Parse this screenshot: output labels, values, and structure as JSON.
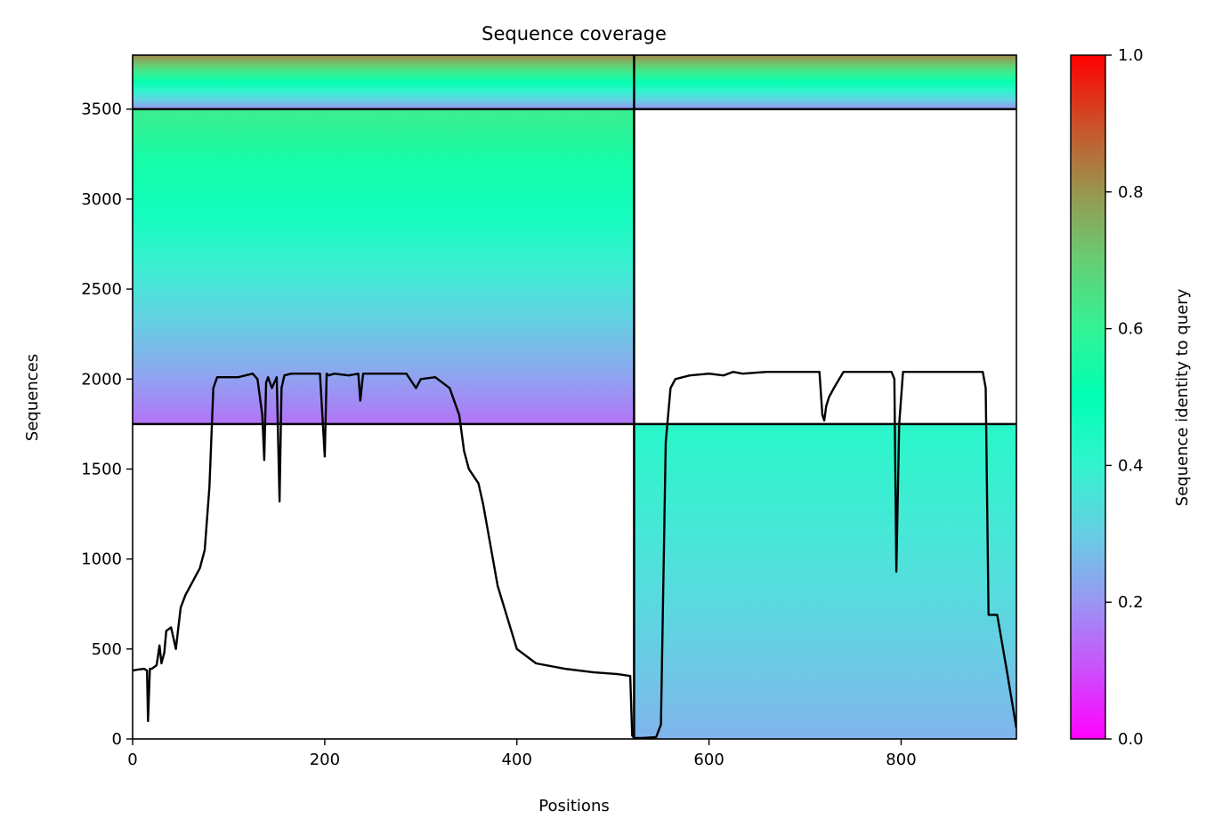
{
  "chart_data": {
    "type": "heatmap",
    "title": "Sequence coverage",
    "xlabel": "Positions",
    "ylabel": "Sequences",
    "xlim": [
      0,
      920
    ],
    "ylim": [
      0,
      3800
    ],
    "x_ticks": [
      0,
      200,
      400,
      600,
      800
    ],
    "y_ticks": [
      0,
      500,
      1000,
      1500,
      2000,
      2500,
      3000,
      3500
    ],
    "grid": false,
    "colorbar": {
      "label": "Sequence identity to query",
      "range": [
        0.0,
        1.0
      ],
      "ticks": [
        "0.0",
        "0.2",
        "0.4",
        "0.6",
        "0.8",
        "1.0"
      ],
      "colormap": "rainbow"
    },
    "boundaries": {
      "chain_break_x": 522,
      "row_breaks_y": [
        1750,
        3500
      ]
    },
    "blocks": [
      {
        "name": "block-a-top",
        "x0": 0,
        "x1": 522,
        "y0": 3500,
        "y1": 3800,
        "id_bottom": 0.2,
        "id_top": 0.82
      },
      {
        "name": "block-b-top",
        "x0": 522,
        "x1": 920,
        "y0": 3500,
        "y1": 3800,
        "id_bottom": 0.2,
        "id_top": 0.82
      },
      {
        "name": "block-a-mid",
        "x0": 0,
        "x1": 522,
        "y0": 1750,
        "y1": 3500,
        "id_bottom": 0.15,
        "id_top": 0.62
      },
      {
        "name": "block-b-low",
        "x0": 522,
        "x1": 920,
        "y0": 0,
        "y1": 1750,
        "id_bottom": 0.25,
        "id_top": 0.42
      }
    ],
    "coverage_profile": {
      "x": [
        0,
        5,
        12,
        15,
        16,
        18,
        20,
        25,
        28,
        30,
        33,
        35,
        40,
        45,
        50,
        55,
        60,
        65,
        70,
        75,
        80,
        84,
        88,
        95,
        110,
        125,
        130,
        135,
        137,
        139,
        141,
        145,
        150,
        153,
        155,
        158,
        165,
        180,
        195,
        200,
        202,
        204,
        210,
        225,
        235,
        237,
        240,
        260,
        285,
        295,
        300,
        315,
        330,
        340,
        345,
        350,
        360,
        365,
        380,
        400,
        420,
        450,
        480,
        505,
        518,
        520,
        522,
        530,
        545,
        550,
        555,
        560,
        565,
        580,
        600,
        615,
        625,
        635,
        660,
        695,
        710,
        715,
        718,
        720,
        722,
        725,
        730,
        740,
        760,
        780,
        790,
        793,
        795,
        798,
        802,
        810,
        830,
        860,
        885,
        888,
        891,
        900,
        910,
        920
      ],
      "y": [
        380,
        385,
        390,
        380,
        100,
        390,
        390,
        410,
        520,
        420,
        480,
        600,
        620,
        500,
        730,
        800,
        850,
        900,
        950,
        1050,
        1400,
        1950,
        2010,
        2010,
        2010,
        2030,
        2000,
        1800,
        1550,
        1980,
        2010,
        1950,
        2010,
        1320,
        1950,
        2020,
        2030,
        2030,
        2030,
        1570,
        2030,
        2020,
        2030,
        2020,
        2030,
        1880,
        2030,
        2030,
        2030,
        1950,
        2000,
        2010,
        1950,
        1800,
        1600,
        1500,
        1420,
        1300,
        850,
        500,
        420,
        390,
        370,
        360,
        350,
        20,
        5,
        5,
        10,
        80,
        1650,
        1950,
        2000,
        2020,
        2030,
        2020,
        2040,
        2030,
        2040,
        2040,
        2040,
        2040,
        1800,
        1770,
        1850,
        1900,
        1950,
        2040,
        2040,
        2040,
        2040,
        2000,
        930,
        1750,
        2040,
        2040,
        2040,
        2040,
        2040,
        1950,
        690,
        690,
        380,
        60
      ]
    }
  }
}
